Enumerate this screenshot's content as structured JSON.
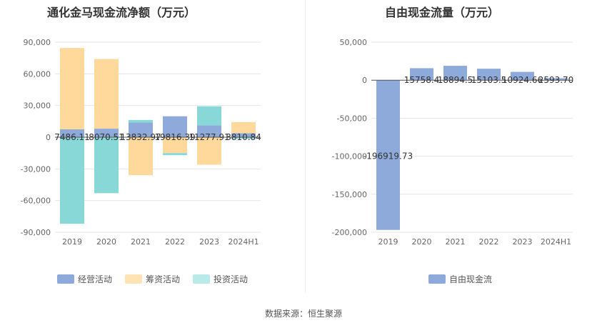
{
  "source_label": "数据来源：恒生聚源",
  "chart_data": [
    {
      "type": "bar",
      "title": "通化金马现金流净额（万元）",
      "categories": [
        "2019",
        "2020",
        "2021",
        "2022",
        "2023",
        "2024H1"
      ],
      "ylim": [
        -90000,
        90000
      ],
      "yticks": [
        90000,
        60000,
        30000,
        0,
        -30000,
        -60000,
        -90000
      ],
      "ytick_labels": [
        "90,000",
        "60,000",
        "30,000",
        "0",
        "-30,000",
        "-60,000",
        "-90,000"
      ],
      "grid": true,
      "legend_position": "bottom",
      "series": [
        {
          "name": "经营活动",
          "color": "#8eaadb",
          "values": [
            7486.11,
            8070.51,
            13832.97,
            19816.39,
            11277.91,
            3810.84
          ],
          "labels": [
            "7486.11",
            "8070.51",
            "13832.97",
            "19816.39",
            "11277.91",
            "3810.84"
          ]
        },
        {
          "name": "筹资活动",
          "color": "#ffd99c",
          "values": [
            77000,
            66000,
            -36000,
            -15000,
            -26000,
            10500
          ]
        },
        {
          "name": "投资活动",
          "color": "#88d8d8",
          "values": [
            -82000,
            -53000,
            2500,
            -2000,
            18000,
            -1500
          ]
        }
      ]
    },
    {
      "type": "bar",
      "title": "自由现金流量（万元）",
      "categories": [
        "2019",
        "2020",
        "2021",
        "2022",
        "2023",
        "2024H1"
      ],
      "ylim": [
        -200000,
        50000
      ],
      "yticks": [
        50000,
        0,
        -50000,
        -100000,
        -150000,
        -200000
      ],
      "ytick_labels": [
        "50,000",
        "0",
        "-50,000",
        "-100,000",
        "-150,000",
        "-200,000"
      ],
      "grid": true,
      "legend_position": "bottom",
      "series": [
        {
          "name": "自由现金流",
          "color": "#8eaadb",
          "values": [
            -196919.73,
            15758.4,
            18894.5,
            15103.5,
            10924.66,
            2593.7
          ],
          "labels": [
            "-196919.73",
            "15758.4",
            "18894.5",
            "15103.5",
            "10924.66",
            "2593.70"
          ]
        }
      ]
    }
  ]
}
